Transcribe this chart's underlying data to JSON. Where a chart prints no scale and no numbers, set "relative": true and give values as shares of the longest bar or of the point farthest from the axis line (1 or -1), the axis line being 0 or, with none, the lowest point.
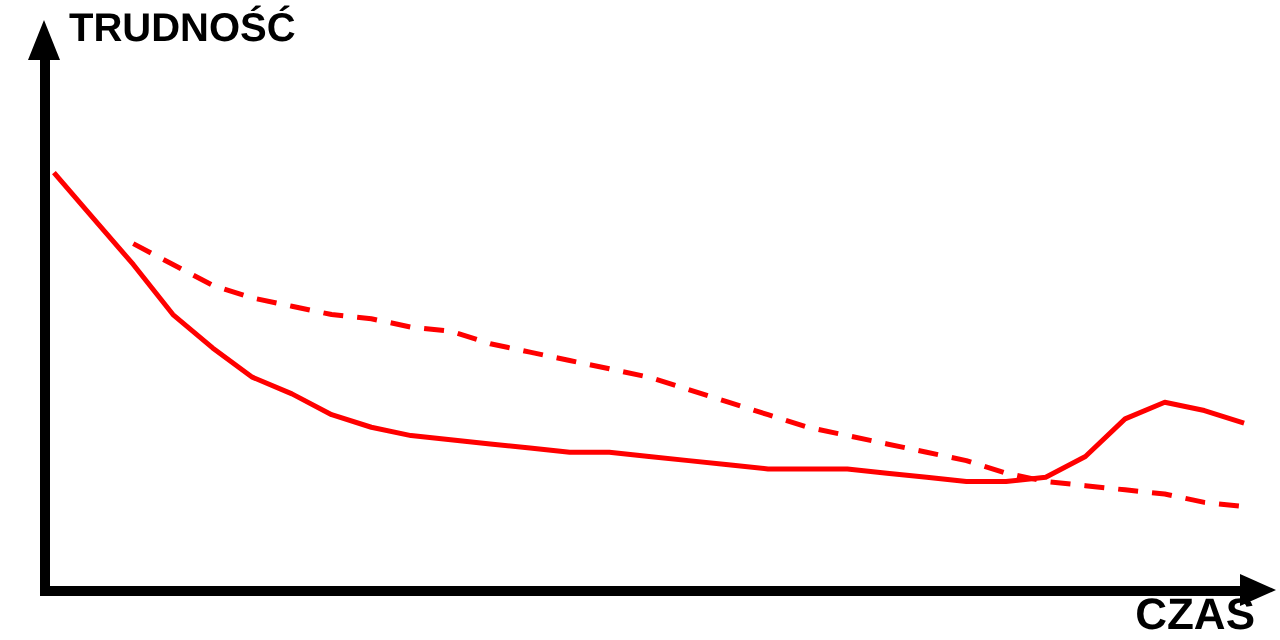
{
  "chart_data": {
    "type": "line",
    "relative": true,
    "xlabel": "CZAS",
    "ylabel": "TRUDNOŚĆ",
    "grid": false,
    "legend": false,
    "marker": "none",
    "categories": [
      null,
      null,
      null,
      null,
      null,
      null,
      null,
      null,
      null,
      null,
      null,
      null,
      null,
      null,
      null,
      null,
      null,
      null,
      null,
      null,
      null,
      null,
      null,
      null,
      null,
      null,
      null,
      null,
      null,
      null,
      null
    ],
    "series": [
      {
        "color": "#ff0000",
        "line_style": "solid",
        "values": [
          1.0,
          0.89,
          0.78,
          0.66,
          0.58,
          0.51,
          0.47,
          0.42,
          0.39,
          0.37,
          0.36,
          0.35,
          0.34,
          0.33,
          0.33,
          0.32,
          0.31,
          0.3,
          0.29,
          0.29,
          0.29,
          0.28,
          0.27,
          0.26,
          0.26,
          0.27,
          0.32,
          0.41,
          0.45,
          0.43,
          0.4
        ]
      },
      {
        "color": "#ff0000",
        "line_style": "dashed",
        "values": [
          null,
          null,
          0.83,
          0.78,
          0.73,
          0.7,
          0.68,
          0.66,
          0.65,
          0.63,
          0.62,
          0.59,
          0.57,
          0.55,
          0.53,
          0.51,
          0.48,
          0.45,
          0.42,
          0.39,
          0.37,
          0.35,
          0.33,
          0.31,
          0.28,
          0.26,
          0.25,
          0.24,
          0.23,
          0.21,
          0.2
        ]
      }
    ]
  }
}
